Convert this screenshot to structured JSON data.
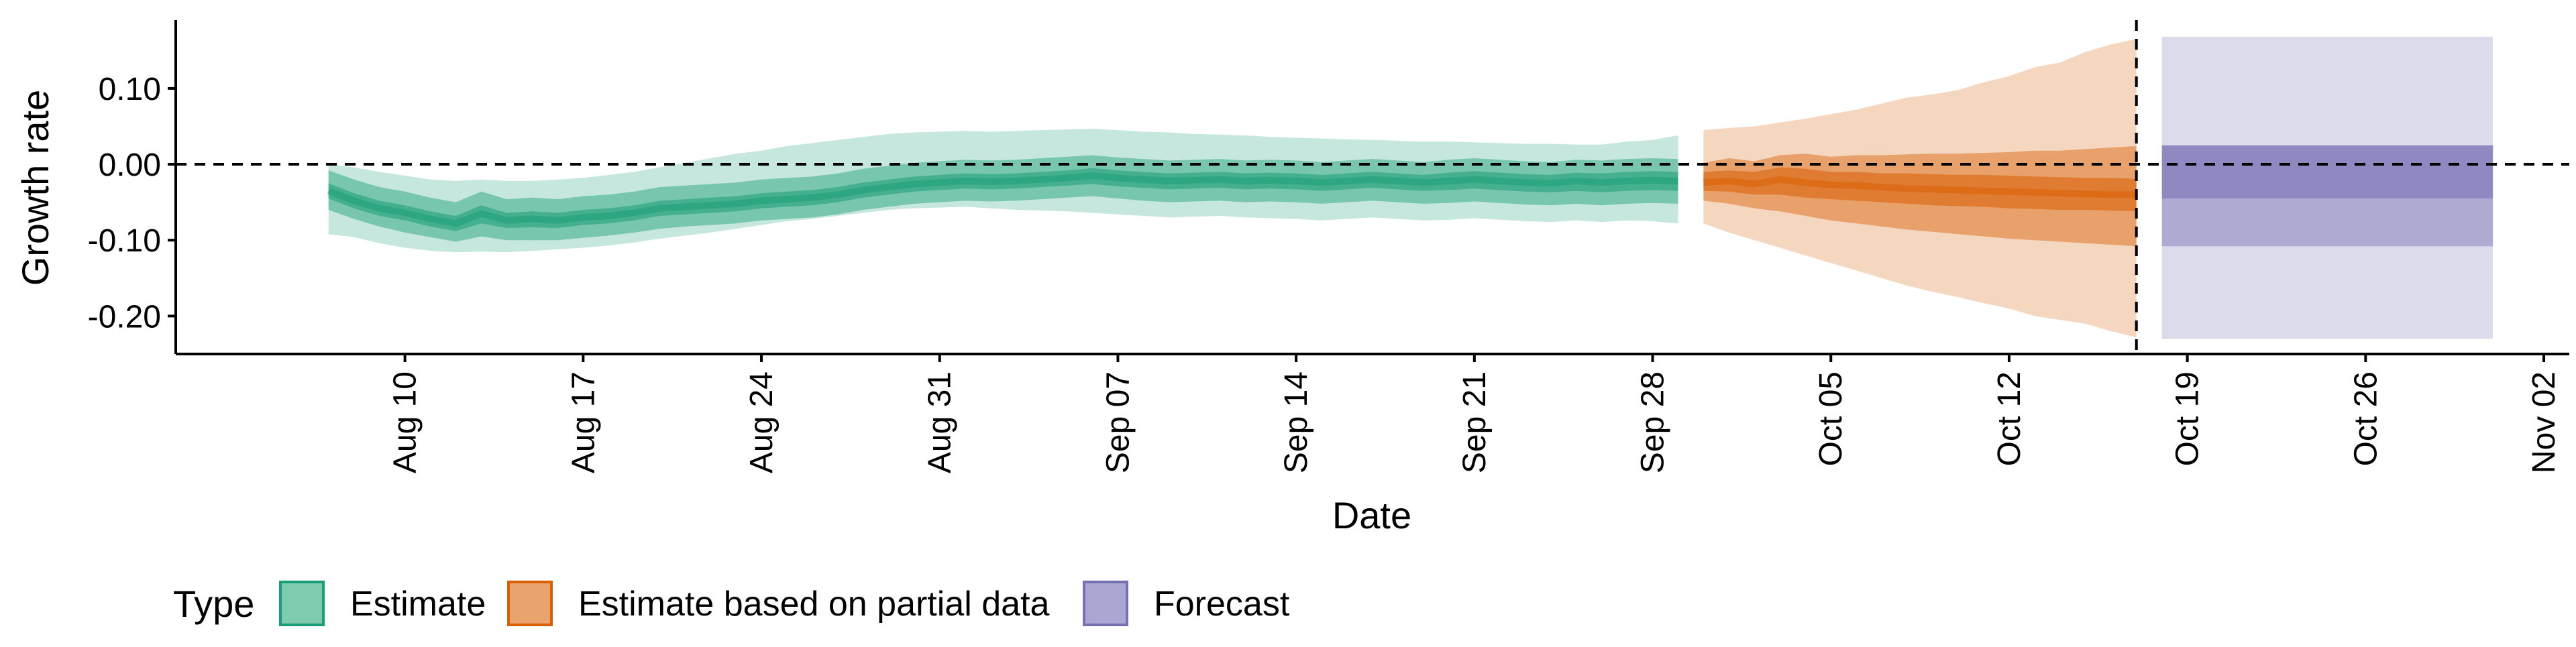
{
  "chart_data": {
    "type": "area",
    "title": "",
    "xlabel": "Date",
    "ylabel": "Growth rate",
    "x_ticks": [
      "Aug 10",
      "Aug 17",
      "Aug 24",
      "Aug 31",
      "Sep 07",
      "Sep 14",
      "Sep 21",
      "Sep 28",
      "Oct 05",
      "Oct 12",
      "Oct 19",
      "Oct 26",
      "Nov 02"
    ],
    "y_ticks": [
      "0.10",
      "0.00",
      "-0.10",
      "-0.20"
    ],
    "ylim": [
      -0.25,
      0.19
    ],
    "xlim": [
      "2020-08-01",
      "2020-11-03"
    ],
    "forecast_date": "2020-10-17",
    "reference_line_y": 0.0,
    "legend": {
      "title": "Type",
      "position": "bottom-left",
      "entries": [
        {
          "label": "Estimate",
          "fill": "#7fcbae",
          "stroke": "#1b9e77"
        },
        {
          "label": "Estimate based on partial data",
          "fill": "#e9a46e",
          "stroke": "#d95f02"
        },
        {
          "label": "Forecast",
          "fill": "#aaa8d2",
          "stroke": "#7570b3"
        }
      ]
    },
    "series": [
      {
        "name": "Estimate",
        "color": "#1b9e77",
        "dates": [
          "2020-08-07",
          "2020-08-08",
          "2020-08-09",
          "2020-08-10",
          "2020-08-11",
          "2020-08-12",
          "2020-08-13",
          "2020-08-14",
          "2020-08-15",
          "2020-08-16",
          "2020-08-17",
          "2020-08-18",
          "2020-08-19",
          "2020-08-20",
          "2020-08-21",
          "2020-08-22",
          "2020-08-23",
          "2020-08-24",
          "2020-08-25",
          "2020-08-26",
          "2020-08-27",
          "2020-08-28",
          "2020-08-29",
          "2020-08-30",
          "2020-08-31",
          "2020-09-01",
          "2020-09-02",
          "2020-09-03",
          "2020-09-04",
          "2020-09-05",
          "2020-09-06",
          "2020-09-07",
          "2020-09-08",
          "2020-09-09",
          "2020-09-10",
          "2020-09-11",
          "2020-09-12",
          "2020-09-13",
          "2020-09-14",
          "2020-09-15",
          "2020-09-16",
          "2020-09-17",
          "2020-09-18",
          "2020-09-19",
          "2020-09-20",
          "2020-09-21",
          "2020-09-22",
          "2020-09-23",
          "2020-09-24",
          "2020-09-25",
          "2020-09-26",
          "2020-09-27",
          "2020-09-28",
          "2020-09-29"
        ],
        "median": [
          -0.035,
          -0.048,
          -0.058,
          -0.064,
          -0.072,
          -0.078,
          -0.065,
          -0.074,
          -0.072,
          -0.074,
          -0.07,
          -0.068,
          -0.064,
          -0.058,
          -0.056,
          -0.054,
          -0.052,
          -0.048,
          -0.046,
          -0.044,
          -0.04,
          -0.034,
          -0.03,
          -0.026,
          -0.024,
          -0.022,
          -0.023,
          -0.022,
          -0.02,
          -0.018,
          -0.015,
          -0.018,
          -0.02,
          -0.022,
          -0.021,
          -0.02,
          -0.022,
          -0.021,
          -0.022,
          -0.024,
          -0.022,
          -0.02,
          -0.022,
          -0.024,
          -0.022,
          -0.02,
          -0.022,
          -0.024,
          -0.025,
          -0.022,
          -0.024,
          -0.022,
          -0.021,
          -0.022
        ],
        "lower_50": [
          -0.045,
          -0.058,
          -0.068,
          -0.074,
          -0.082,
          -0.088,
          -0.078,
          -0.084,
          -0.083,
          -0.084,
          -0.08,
          -0.078,
          -0.074,
          -0.068,
          -0.066,
          -0.064,
          -0.062,
          -0.058,
          -0.056,
          -0.054,
          -0.05,
          -0.044,
          -0.04,
          -0.036,
          -0.034,
          -0.032,
          -0.033,
          -0.032,
          -0.03,
          -0.028,
          -0.026,
          -0.029,
          -0.031,
          -0.033,
          -0.032,
          -0.031,
          -0.033,
          -0.032,
          -0.033,
          -0.035,
          -0.033,
          -0.031,
          -0.033,
          -0.035,
          -0.034,
          -0.032,
          -0.034,
          -0.036,
          -0.037,
          -0.035,
          -0.037,
          -0.035,
          -0.034,
          -0.035
        ],
        "upper_50": [
          -0.025,
          -0.038,
          -0.048,
          -0.054,
          -0.062,
          -0.068,
          -0.054,
          -0.064,
          -0.062,
          -0.064,
          -0.06,
          -0.058,
          -0.054,
          -0.048,
          -0.046,
          -0.044,
          -0.042,
          -0.038,
          -0.036,
          -0.034,
          -0.03,
          -0.024,
          -0.02,
          -0.016,
          -0.014,
          -0.012,
          -0.013,
          -0.012,
          -0.01,
          -0.008,
          -0.005,
          -0.008,
          -0.01,
          -0.012,
          -0.011,
          -0.01,
          -0.012,
          -0.011,
          -0.012,
          -0.014,
          -0.012,
          -0.01,
          -0.012,
          -0.014,
          -0.011,
          -0.009,
          -0.011,
          -0.013,
          -0.014,
          -0.011,
          -0.012,
          -0.01,
          -0.009,
          -0.01
        ],
        "lower_90": [
          -0.06,
          -0.072,
          -0.082,
          -0.09,
          -0.096,
          -0.102,
          -0.095,
          -0.1,
          -0.1,
          -0.1,
          -0.097,
          -0.094,
          -0.09,
          -0.085,
          -0.082,
          -0.08,
          -0.078,
          -0.074,
          -0.072,
          -0.07,
          -0.066,
          -0.06,
          -0.056,
          -0.052,
          -0.05,
          -0.048,
          -0.049,
          -0.048,
          -0.046,
          -0.044,
          -0.042,
          -0.045,
          -0.048,
          -0.05,
          -0.049,
          -0.048,
          -0.05,
          -0.049,
          -0.05,
          -0.052,
          -0.05,
          -0.048,
          -0.05,
          -0.052,
          -0.051,
          -0.049,
          -0.051,
          -0.053,
          -0.054,
          -0.052,
          -0.054,
          -0.052,
          -0.051,
          -0.052
        ],
        "upper_90": [
          -0.008,
          -0.02,
          -0.03,
          -0.036,
          -0.044,
          -0.05,
          -0.036,
          -0.046,
          -0.044,
          -0.046,
          -0.042,
          -0.04,
          -0.036,
          -0.03,
          -0.028,
          -0.026,
          -0.024,
          -0.02,
          -0.018,
          -0.016,
          -0.012,
          -0.006,
          -0.002,
          0.002,
          0.004,
          0.006,
          0.005,
          0.006,
          0.008,
          0.01,
          0.012,
          0.009,
          0.007,
          0.005,
          0.006,
          0.007,
          0.005,
          0.006,
          0.005,
          0.003,
          0.005,
          0.007,
          0.005,
          0.003,
          0.006,
          0.008,
          0.006,
          0.004,
          0.003,
          0.006,
          0.005,
          0.007,
          0.008,
          0.007
        ],
        "lower_95": [
          -0.092,
          -0.096,
          -0.104,
          -0.11,
          -0.114,
          -0.116,
          -0.115,
          -0.116,
          -0.114,
          -0.112,
          -0.11,
          -0.107,
          -0.103,
          -0.098,
          -0.094,
          -0.09,
          -0.085,
          -0.08,
          -0.075,
          -0.072,
          -0.068,
          -0.064,
          -0.06,
          -0.058,
          -0.057,
          -0.056,
          -0.058,
          -0.06,
          -0.061,
          -0.062,
          -0.064,
          -0.066,
          -0.068,
          -0.07,
          -0.069,
          -0.068,
          -0.07,
          -0.071,
          -0.072,
          -0.074,
          -0.072,
          -0.07,
          -0.072,
          -0.074,
          -0.073,
          -0.071,
          -0.073,
          -0.075,
          -0.076,
          -0.074,
          -0.076,
          -0.074,
          -0.075,
          -0.078
        ],
        "upper_95": [
          0.0,
          -0.004,
          -0.01,
          -0.015,
          -0.02,
          -0.022,
          -0.02,
          -0.022,
          -0.022,
          -0.02,
          -0.018,
          -0.014,
          -0.01,
          -0.004,
          0.002,
          0.008,
          0.014,
          0.018,
          0.024,
          0.028,
          0.032,
          0.036,
          0.04,
          0.042,
          0.043,
          0.044,
          0.043,
          0.044,
          0.045,
          0.046,
          0.047,
          0.045,
          0.043,
          0.042,
          0.04,
          0.039,
          0.038,
          0.036,
          0.035,
          0.034,
          0.033,
          0.032,
          0.031,
          0.03,
          0.03,
          0.029,
          0.028,
          0.027,
          0.027,
          0.026,
          0.026,
          0.03,
          0.032,
          0.038
        ]
      },
      {
        "name": "Estimate based on partial data",
        "color": "#d95f02",
        "dates": [
          "2020-09-30",
          "2020-10-01",
          "2020-10-02",
          "2020-10-03",
          "2020-10-04",
          "2020-10-05",
          "2020-10-06",
          "2020-10-07",
          "2020-10-08",
          "2020-10-09",
          "2020-10-10",
          "2020-10-11",
          "2020-10-12",
          "2020-10-13",
          "2020-10-14",
          "2020-10-15",
          "2020-10-16",
          "2020-10-17"
        ],
        "median": [
          -0.024,
          -0.022,
          -0.026,
          -0.02,
          -0.024,
          -0.027,
          -0.028,
          -0.03,
          -0.032,
          -0.033,
          -0.034,
          -0.035,
          -0.036,
          -0.037,
          -0.038,
          -0.039,
          -0.04,
          -0.04
        ],
        "lower_50": [
          -0.035,
          -0.036,
          -0.04,
          -0.04,
          -0.044,
          -0.046,
          -0.048,
          -0.05,
          -0.052,
          -0.054,
          -0.055,
          -0.056,
          -0.058,
          -0.059,
          -0.06,
          -0.06,
          -0.061,
          -0.062
        ],
        "upper_50": [
          -0.01,
          -0.008,
          -0.01,
          -0.004,
          -0.006,
          -0.01,
          -0.01,
          -0.012,
          -0.012,
          -0.013,
          -0.014,
          -0.014,
          -0.015,
          -0.016,
          -0.017,
          -0.018,
          -0.018,
          -0.019
        ],
        "lower_90": [
          -0.048,
          -0.052,
          -0.058,
          -0.062,
          -0.068,
          -0.074,
          -0.078,
          -0.082,
          -0.086,
          -0.089,
          -0.092,
          -0.095,
          -0.098,
          -0.1,
          -0.102,
          -0.104,
          -0.106,
          -0.108
        ],
        "upper_90": [
          0.002,
          0.008,
          0.004,
          0.012,
          0.014,
          0.01,
          0.012,
          0.012,
          0.013,
          0.014,
          0.014,
          0.015,
          0.016,
          0.018,
          0.018,
          0.02,
          0.022,
          0.024
        ],
        "lower_95": [
          -0.078,
          -0.09,
          -0.1,
          -0.11,
          -0.12,
          -0.13,
          -0.14,
          -0.15,
          -0.16,
          -0.168,
          -0.175,
          -0.183,
          -0.19,
          -0.2,
          -0.205,
          -0.21,
          -0.22,
          -0.228
        ],
        "upper_95": [
          0.045,
          0.048,
          0.05,
          0.055,
          0.06,
          0.066,
          0.072,
          0.08,
          0.088,
          0.092,
          0.098,
          0.108,
          0.116,
          0.128,
          0.134,
          0.148,
          0.158,
          0.165
        ]
      },
      {
        "name": "Forecast",
        "color": "#7570b3",
        "dates": [
          "2020-10-18",
          "2020-10-31"
        ],
        "median": [
          -0.045,
          -0.045
        ],
        "lower_50": [
          -0.045,
          -0.045
        ],
        "upper_50": [
          0.025,
          0.025
        ],
        "lower_90": [
          -0.108,
          -0.108
        ],
        "upper_90": [
          0.025,
          0.025
        ],
        "lower_95": [
          -0.23,
          -0.23
        ],
        "upper_95": [
          0.168,
          0.168
        ]
      }
    ]
  }
}
